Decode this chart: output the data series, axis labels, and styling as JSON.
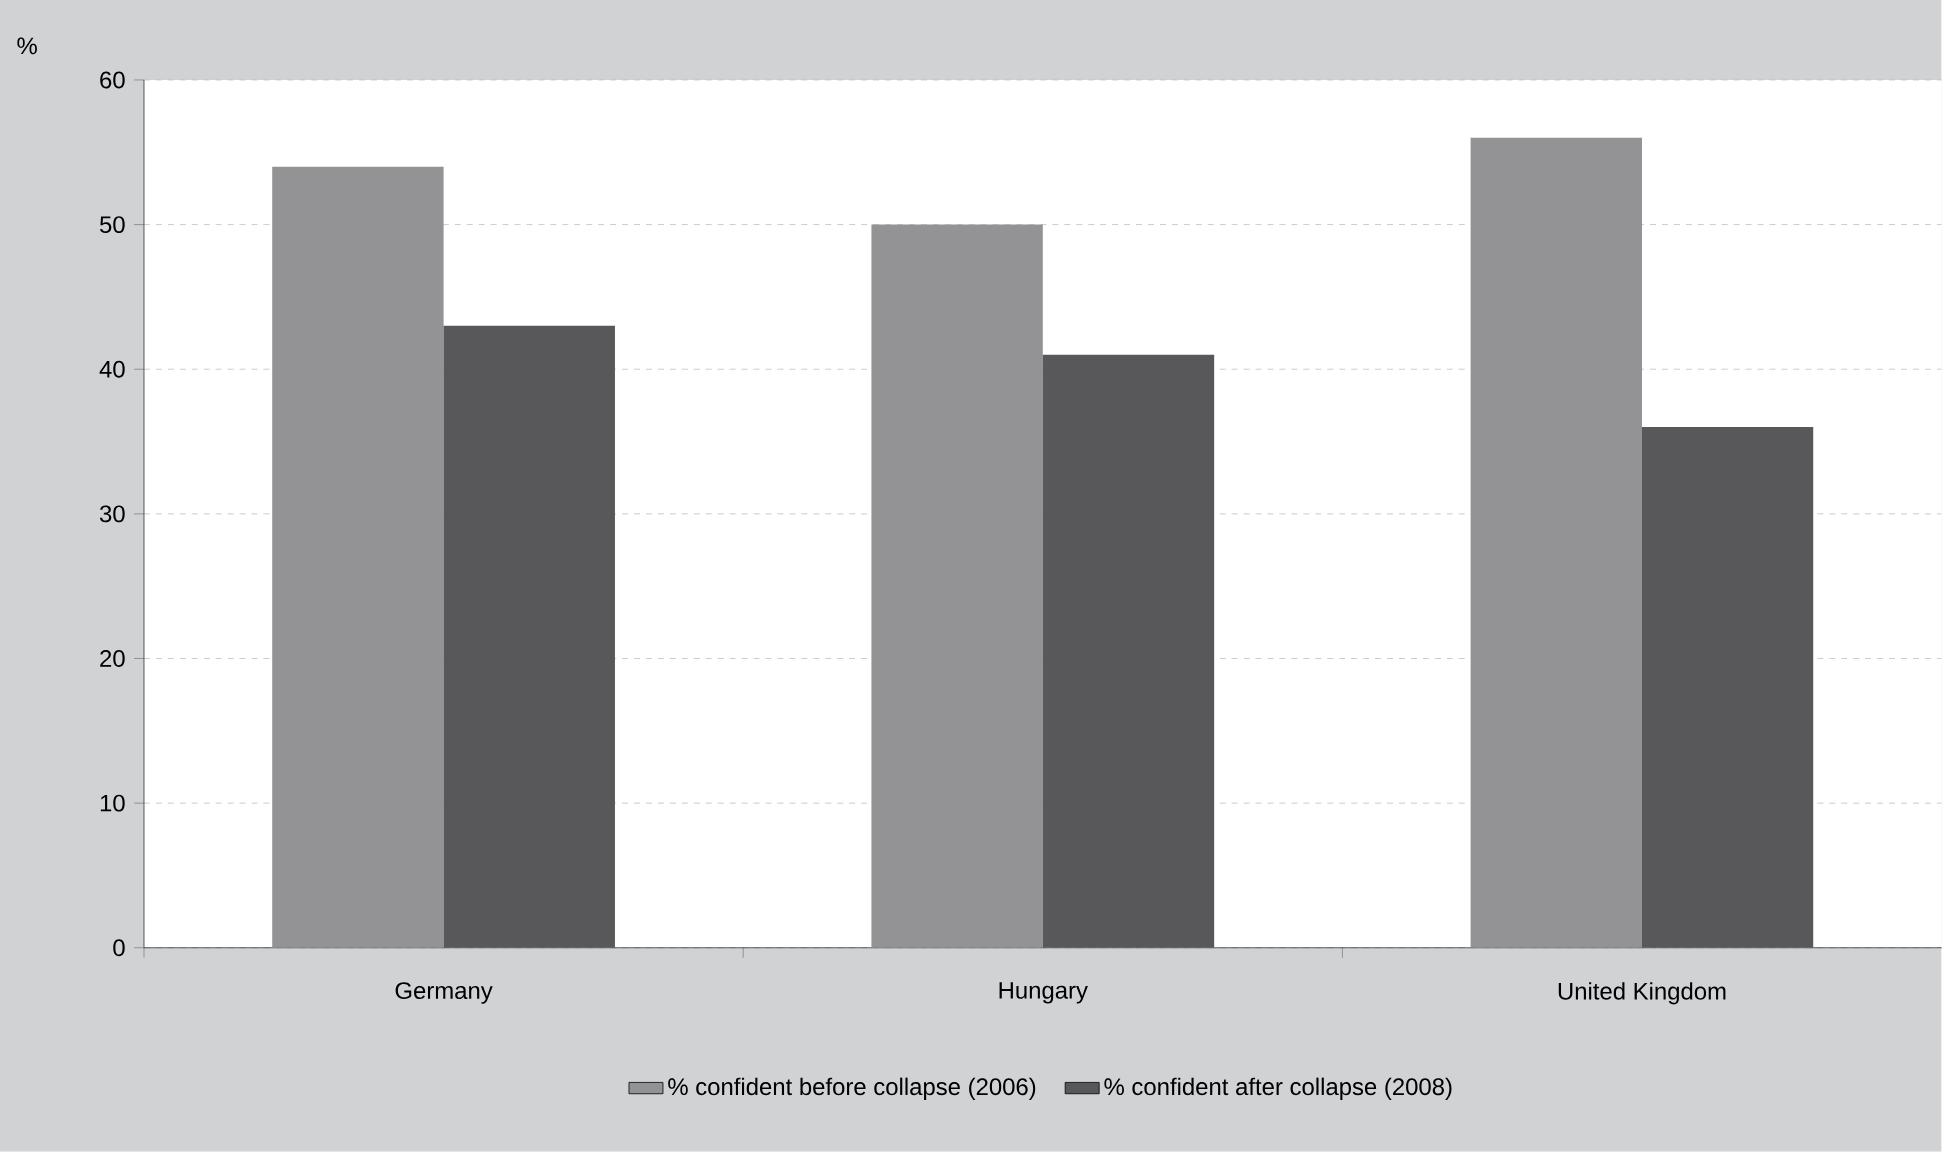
{
  "chart_data": {
    "type": "bar",
    "ylabel": "%",
    "categories": [
      "Germany",
      "Hungary",
      "United Kingdom"
    ],
    "series": [
      {
        "name": "% confident before collapse (2006)",
        "color": "#939396",
        "values": [
          54,
          50,
          56
        ]
      },
      {
        "name": "% confident after collapse (2008)",
        "color": "#58585b",
        "values": [
          43,
          41,
          36
        ]
      }
    ],
    "ylim": [
      0,
      60
    ],
    "yticks": [
      0,
      10,
      20,
      30,
      40,
      50,
      60
    ],
    "grid": "y",
    "legend": "bottom"
  }
}
